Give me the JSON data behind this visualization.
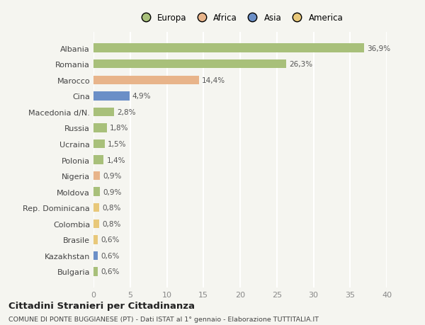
{
  "categories": [
    "Albania",
    "Romania",
    "Marocco",
    "Cina",
    "Macedonia d/N.",
    "Russia",
    "Ucraina",
    "Polonia",
    "Nigeria",
    "Moldova",
    "Rep. Dominicana",
    "Colombia",
    "Brasile",
    "Kazakhstan",
    "Bulgaria"
  ],
  "values": [
    36.9,
    26.3,
    14.4,
    4.9,
    2.8,
    1.8,
    1.5,
    1.4,
    0.9,
    0.9,
    0.8,
    0.8,
    0.6,
    0.6,
    0.6
  ],
  "labels": [
    "36,9%",
    "26,3%",
    "14,4%",
    "4,9%",
    "2,8%",
    "1,8%",
    "1,5%",
    "1,4%",
    "0,9%",
    "0,9%",
    "0,8%",
    "0,8%",
    "0,6%",
    "0,6%",
    "0,6%"
  ],
  "colors": [
    "#a8c07a",
    "#a8c07a",
    "#e8b48a",
    "#6b8fc7",
    "#a8c07a",
    "#a8c07a",
    "#a8c07a",
    "#a8c07a",
    "#e8b48a",
    "#a8c07a",
    "#e8c87a",
    "#e8c87a",
    "#e8c87a",
    "#6b8fc7",
    "#a8c07a"
  ],
  "legend": [
    {
      "label": "Europa",
      "color": "#a8c07a"
    },
    {
      "label": "Africa",
      "color": "#e8b48a"
    },
    {
      "label": "Asia",
      "color": "#6b8fc7"
    },
    {
      "label": "America",
      "color": "#e8c87a"
    }
  ],
  "xlim": [
    0,
    40
  ],
  "xticks": [
    0,
    5,
    10,
    15,
    20,
    25,
    30,
    35,
    40
  ],
  "title": "Cittadini Stranieri per Cittadinanza",
  "subtitle": "COMUNE DI PONTE BUGGIANESE (PT) - Dati ISTAT al 1° gennaio - Elaborazione TUTTITALIA.IT",
  "bg_color": "#f5f5f0",
  "grid_color": "#ffffff",
  "bar_height": 0.55
}
